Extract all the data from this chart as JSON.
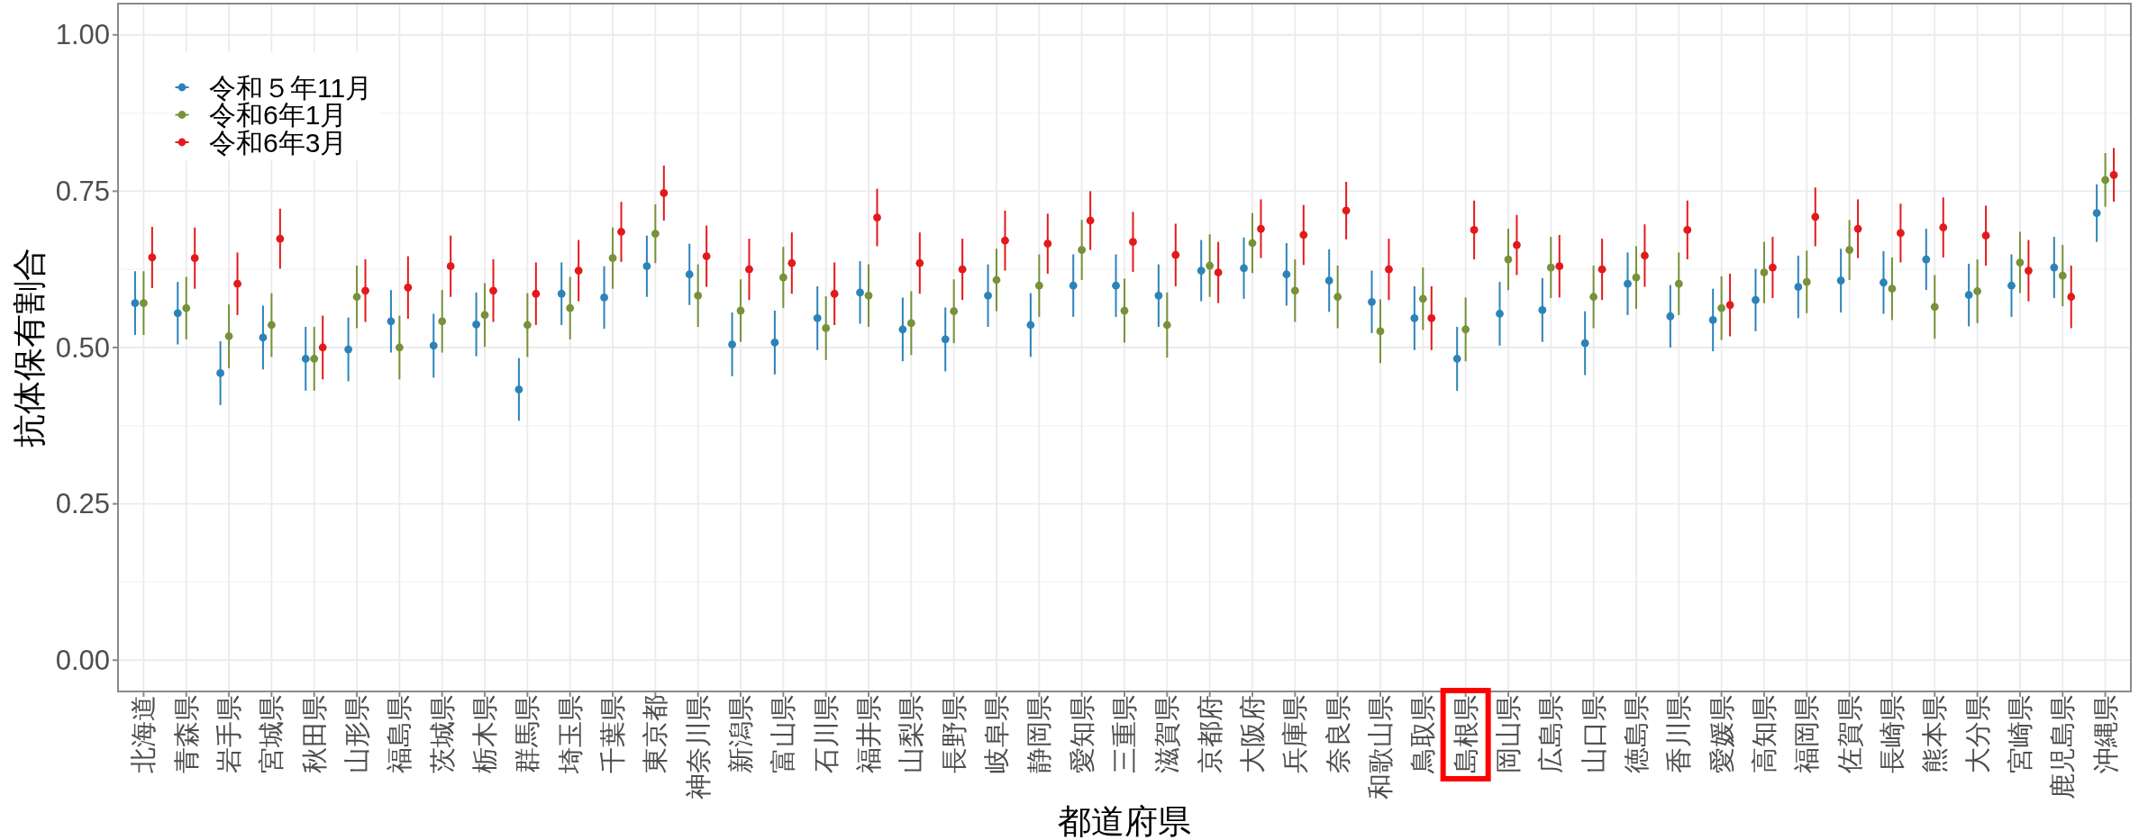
{
  "chart_data": {
    "type": "scatter",
    "xlabel": "都道府県",
    "ylabel": "抗体保有割合",
    "categories": [
      "北海道",
      "青森県",
      "岩手県",
      "宮城県",
      "秋田県",
      "山形県",
      "福島県",
      "茨城県",
      "栃木県",
      "群馬県",
      "埼玉県",
      "千葉県",
      "東京都",
      "神奈川県",
      "新潟県",
      "富山県",
      "石川県",
      "福井県",
      "山梨県",
      "長野県",
      "岐阜県",
      "静岡県",
      "愛知県",
      "三重県",
      "滋賀県",
      "京都府",
      "大阪府",
      "兵庫県",
      "奈良県",
      "和歌山県",
      "鳥取県",
      "島根県",
      "岡山県",
      "広島県",
      "山口県",
      "徳島県",
      "香川県",
      "愛媛県",
      "高知県",
      "福岡県",
      "佐賀県",
      "長崎県",
      "熊本県",
      "大分県",
      "宮崎県",
      "鹿児島県",
      "沖縄県"
    ],
    "series": [
      {
        "name": "令和５年11月",
        "color": "#2b83ba",
        "values": [
          0.571,
          0.555,
          0.459,
          0.516,
          0.482,
          0.497,
          0.542,
          0.503,
          0.537,
          0.433,
          0.586,
          0.58,
          0.63,
          0.617,
          0.505,
          0.508,
          0.547,
          0.588,
          0.529,
          0.513,
          0.583,
          0.536,
          0.599,
          0.599,
          0.583,
          0.623,
          0.627,
          0.617,
          0.607,
          0.573,
          0.547,
          0.482,
          0.554,
          0.56,
          0.507,
          0.602,
          0.55,
          0.544,
          0.576,
          0.597,
          0.607,
          0.604,
          0.641,
          0.584,
          0.599,
          0.628,
          0.715
        ],
        "errors": [
          0.051,
          0.05,
          0.051,
          0.051,
          0.051,
          0.051,
          0.05,
          0.051,
          0.051,
          0.05,
          0.05,
          0.05,
          0.049,
          0.049,
          0.051,
          0.051,
          0.051,
          0.05,
          0.051,
          0.051,
          0.05,
          0.051,
          0.05,
          0.05,
          0.05,
          0.049,
          0.049,
          0.05,
          0.05,
          0.05,
          0.051,
          0.051,
          0.051,
          0.051,
          0.051,
          0.05,
          0.05,
          0.05,
          0.05,
          0.05,
          0.051,
          0.05,
          0.049,
          0.05,
          0.05,
          0.049,
          0.046
        ]
      },
      {
        "name": "令和6年1月",
        "color": "#76923a",
        "values": [
          0.571,
          0.563,
          0.518,
          0.536,
          0.482,
          0.581,
          0.5,
          0.542,
          0.552,
          0.536,
          0.563,
          0.643,
          0.682,
          0.583,
          0.559,
          0.612,
          0.531,
          0.583,
          0.539,
          0.558,
          0.608,
          0.599,
          0.656,
          0.559,
          0.536,
          0.631,
          0.667,
          0.591,
          0.581,
          0.526,
          0.578,
          0.529,
          0.641,
          0.628,
          0.581,
          0.612,
          0.602,
          0.563,
          0.62,
          0.605,
          0.656,
          0.594,
          0.565,
          0.59,
          0.636,
          0.615,
          0.768
        ],
        "errors": [
          0.051,
          0.05,
          0.051,
          0.051,
          0.051,
          0.05,
          0.051,
          0.05,
          0.051,
          0.051,
          0.05,
          0.049,
          0.047,
          0.05,
          0.05,
          0.049,
          0.051,
          0.05,
          0.051,
          0.051,
          0.05,
          0.05,
          0.048,
          0.051,
          0.052,
          0.05,
          0.048,
          0.05,
          0.05,
          0.051,
          0.05,
          0.051,
          0.049,
          0.049,
          0.05,
          0.05,
          0.05,
          0.051,
          0.049,
          0.05,
          0.048,
          0.05,
          0.051,
          0.051,
          0.049,
          0.049,
          0.043
        ]
      },
      {
        "name": "令和6年3月",
        "color": "#e31a1c",
        "values": [
          0.644,
          0.643,
          0.602,
          0.674,
          0.5,
          0.591,
          0.596,
          0.63,
          0.591,
          0.586,
          0.623,
          0.685,
          0.747,
          0.646,
          0.625,
          0.635,
          0.586,
          0.708,
          0.635,
          0.625,
          0.671,
          0.666,
          0.703,
          0.669,
          0.648,
          0.62,
          0.69,
          0.68,
          0.719,
          0.625,
          0.547,
          0.688,
          0.664,
          0.63,
          0.625,
          0.647,
          0.688,
          0.568,
          0.628,
          0.709,
          0.69,
          0.683,
          0.692,
          0.679,
          0.623,
          0.581,
          0.776
        ],
        "errors": [
          0.049,
          0.049,
          0.05,
          0.048,
          0.051,
          0.05,
          0.05,
          0.049,
          0.05,
          0.05,
          0.049,
          0.048,
          0.044,
          0.049,
          0.049,
          0.049,
          0.05,
          0.046,
          0.049,
          0.049,
          0.048,
          0.048,
          0.047,
          0.048,
          0.05,
          0.049,
          0.047,
          0.048,
          0.046,
          0.049,
          0.051,
          0.047,
          0.048,
          0.05,
          0.049,
          0.05,
          0.047,
          0.05,
          0.049,
          0.047,
          0.047,
          0.047,
          0.048,
          0.048,
          0.049,
          0.05,
          0.043
        ]
      }
    ],
    "ylim": [
      -0.05,
      1.05
    ],
    "yticks": [
      {
        "value": 0,
        "label": "0.00"
      },
      {
        "value": 0.25,
        "label": "0.25"
      },
      {
        "value": 0.5,
        "label": "0.50"
      },
      {
        "value": 0.75,
        "label": "0.75"
      },
      {
        "value": 1,
        "label": "1.00"
      }
    ],
    "grid": true,
    "legend": "top left",
    "marker": "circle"
  }
}
